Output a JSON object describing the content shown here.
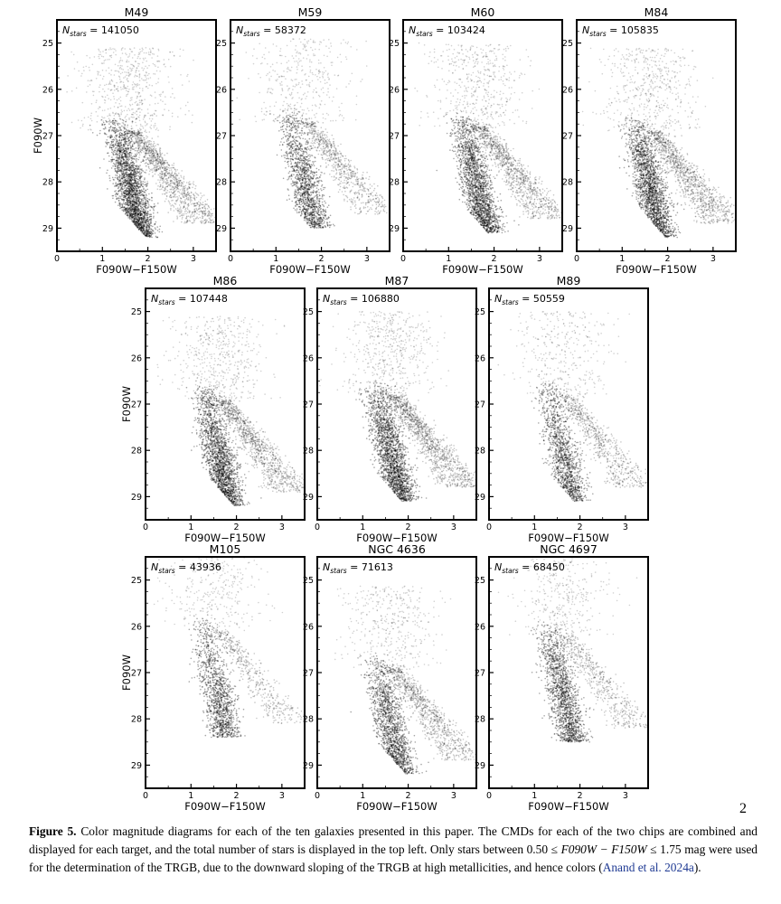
{
  "page_number": "2",
  "caption": {
    "label": "Figure 5.",
    "text_1": " Color magnitude diagrams for each of the ten galaxies presented in this paper. The CMDs for each of the two chips are combined and displayed for each target, and the total number of stars is displayed in the top left. Only stars between 0.50 ≤ ",
    "math_1": "F090W − F150W",
    "text_2": " ≤ 1.75 mag were used for the determination of the TRGB, due to the downward sloping of the TRGB at high metallicities, and hence colors (",
    "citation": "Anand et al. 2024a",
    "text_3": ")."
  },
  "chart_data": [
    {
      "type": "scatter",
      "title": "M49",
      "annotation": "N_stars = 141050",
      "nstars_label": "141050",
      "xlabel": "F090W−F150W",
      "ylabel": "F090W",
      "xlim": [
        0,
        3.5
      ],
      "ylim": [
        29.5,
        24.5
      ],
      "xticks": [
        0,
        1,
        2,
        3
      ],
      "yticks": [
        25,
        26,
        27,
        28,
        29
      ],
      "rgb_tip_mag": 26.6,
      "rgb_color": 1.5,
      "density": 1.0,
      "ybranch": 0.8
    },
    {
      "type": "scatter",
      "title": "M59",
      "annotation": "N_stars = 58372",
      "nstars_label": "58372",
      "xlabel": "F090W−F150W",
      "ylabel": "",
      "xlim": [
        0,
        3.5
      ],
      "ylim": [
        29.5,
        24.5
      ],
      "xticks": [
        0,
        1,
        2,
        3
      ],
      "yticks": [
        25,
        26,
        27,
        28,
        29
      ],
      "rgb_tip_mag": 26.4,
      "rgb_color": 1.5,
      "density": 0.45,
      "ybranch": 0.5
    },
    {
      "type": "scatter",
      "title": "M60",
      "annotation": "N_stars = 103424",
      "nstars_label": "103424",
      "xlabel": "F090W−F150W",
      "ylabel": "",
      "xlim": [
        0,
        3.5
      ],
      "ylim": [
        29.5,
        24.5
      ],
      "xticks": [
        0,
        1,
        2,
        3
      ],
      "yticks": [
        25,
        26,
        27,
        28,
        29
      ],
      "rgb_tip_mag": 26.5,
      "rgb_color": 1.5,
      "density": 0.75,
      "ybranch": 0.7
    },
    {
      "type": "scatter",
      "title": "M84",
      "annotation": "N_stars = 105835",
      "nstars_label": "105835",
      "xlabel": "F090W−F150W",
      "ylabel": "",
      "xlim": [
        0,
        3.5
      ],
      "ylim": [
        29.5,
        24.5
      ],
      "xticks": [
        0,
        1,
        2,
        3
      ],
      "yticks": [
        25,
        26,
        27,
        28,
        29
      ],
      "rgb_tip_mag": 26.6,
      "rgb_color": 1.5,
      "density": 0.8,
      "ybranch": 0.75
    },
    {
      "type": "scatter",
      "title": "M86",
      "annotation": "N_stars = 107448",
      "nstars_label": "107448",
      "xlabel": "F090W−F150W",
      "ylabel": "F090W",
      "xlim": [
        0,
        3.5
      ],
      "ylim": [
        29.5,
        24.5
      ],
      "xticks": [
        0,
        1,
        2,
        3
      ],
      "yticks": [
        25,
        26,
        27,
        28,
        29
      ],
      "rgb_tip_mag": 26.6,
      "rgb_color": 1.5,
      "density": 0.8,
      "ybranch": 0.7
    },
    {
      "type": "scatter",
      "title": "M87",
      "annotation": "N_stars = 106880",
      "nstars_label": "106880",
      "xlabel": "F090W−F150W",
      "ylabel": "",
      "xlim": [
        0,
        3.5
      ],
      "ylim": [
        29.5,
        24.5
      ],
      "xticks": [
        0,
        1,
        2,
        3
      ],
      "yticks": [
        25,
        26,
        27,
        28,
        29
      ],
      "rgb_tip_mag": 26.5,
      "rgb_color": 1.5,
      "density": 0.8,
      "ybranch": 0.8
    },
    {
      "type": "scatter",
      "title": "M89",
      "annotation": "N_stars = 50559",
      "nstars_label": "50559",
      "xlabel": "F090W−F150W",
      "ylabel": "",
      "xlim": [
        0,
        3.5
      ],
      "ylim": [
        29.5,
        24.5
      ],
      "xticks": [
        0,
        1,
        2,
        3
      ],
      "yticks": [
        25,
        26,
        27,
        28,
        29
      ],
      "rgb_tip_mag": 26.5,
      "rgb_color": 1.5,
      "density": 0.4,
      "ybranch": 0.45
    },
    {
      "type": "scatter",
      "title": "M105",
      "annotation": "N_stars = 43936",
      "nstars_label": "43936",
      "xlabel": "F090W−F150W",
      "ylabel": "F090W",
      "xlim": [
        0,
        3.5
      ],
      "ylim": [
        29.5,
        24.5
      ],
      "xticks": [
        0,
        1,
        2,
        3
      ],
      "yticks": [
        25,
        26,
        27,
        28,
        29
      ],
      "rgb_tip_mag": 25.8,
      "rgb_color": 1.45,
      "density": 0.35,
      "ybranch": 0.3
    },
    {
      "type": "scatter",
      "title": "NGC 4636",
      "annotation": "N_stars = 71613",
      "nstars_label": "71613",
      "xlabel": "F090W−F150W",
      "ylabel": "",
      "xlim": [
        0,
        3.5
      ],
      "ylim": [
        29.5,
        24.5
      ],
      "xticks": [
        0,
        1,
        2,
        3
      ],
      "yticks": [
        25,
        26,
        27,
        28,
        29
      ],
      "rgb_tip_mag": 26.6,
      "rgb_color": 1.5,
      "density": 0.55,
      "ybranch": 0.6
    },
    {
      "type": "scatter",
      "title": "NGC 4697",
      "annotation": "N_stars = 68450",
      "nstars_label": "68450",
      "xlabel": "F090W−F150W",
      "ylabel": "",
      "xlim": [
        0,
        3.5
      ],
      "ylim": [
        29.5,
        24.5
      ],
      "xticks": [
        0,
        1,
        2,
        3
      ],
      "yticks": [
        25,
        26,
        27,
        28,
        29
      ],
      "rgb_tip_mag": 25.9,
      "rgb_color": 1.5,
      "density": 0.5,
      "ybranch": 0.35
    }
  ]
}
